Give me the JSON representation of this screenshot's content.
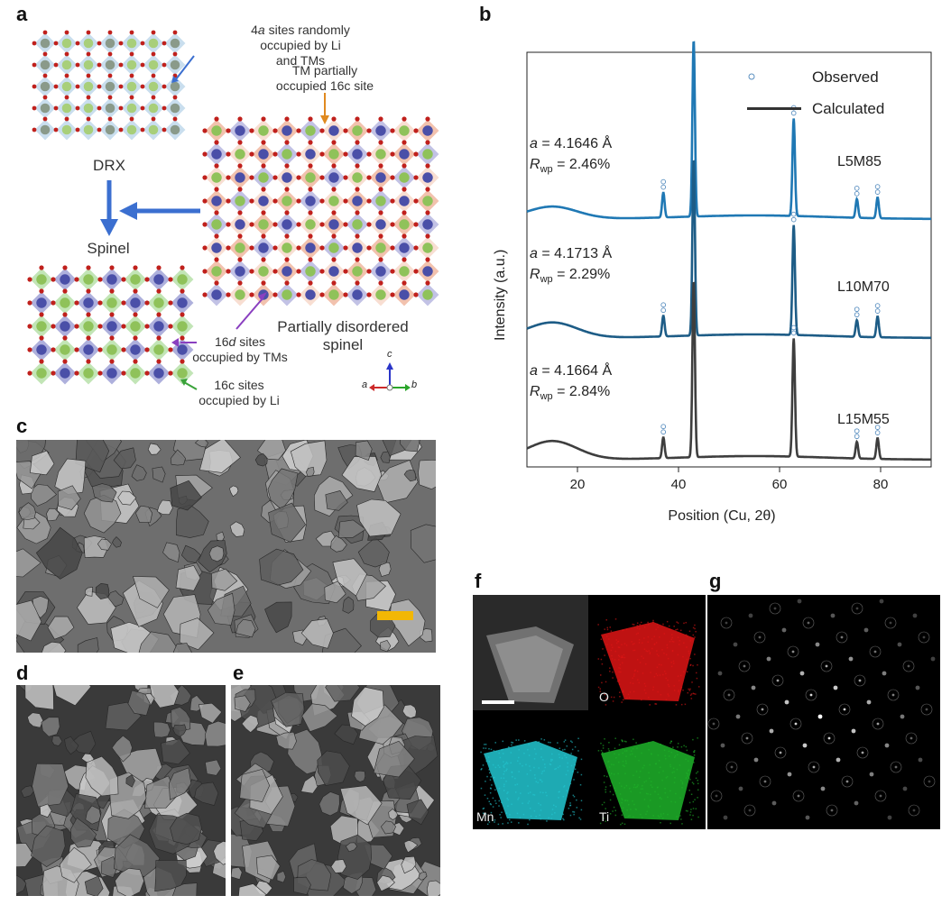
{
  "panel_labels": {
    "a": "a",
    "b": "b",
    "c": "c",
    "d": "d",
    "e": "e",
    "f": "f",
    "g": "g"
  },
  "panel_a": {
    "ann_4a_pre": "4",
    "ann_4a_it": "a",
    "ann_4a_line1_rest": " sites randomly",
    "ann_4a_line2": "occupied by Li",
    "ann_4a_line3": "and TMs",
    "ann_tm_line1": "TM partially",
    "ann_tm_line2": "occupied 16c site",
    "drx": "DRX",
    "spinel": "Spinel",
    "pds_line1": "Partially disordered",
    "pds_line2": "spinel",
    "ann_16d_pre": "16",
    "ann_16d_it": "d",
    "ann_16d_rest": " sites",
    "ann_16d_line2": "occupied by TMs",
    "ann_16c_line1": "16c sites",
    "ann_16c_line2": "occupied by Li",
    "axis_a": "a",
    "axis_b": "b",
    "axis_c": "c",
    "colors": {
      "oxygen": "#c0201c",
      "li": "#8fc25a",
      "tm": "#4a4fa8",
      "drx_poly": "#9cc3e0",
      "spinel_li": "#8fd07a",
      "spinel_tm": "#6b6fbf",
      "pds_orange": "#e7906c"
    }
  },
  "chart_data": {
    "type": "line",
    "xlabel": "Position (Cu, 2θ)",
    "ylabel": "Intensity (a.u.)",
    "xlim": [
      10,
      90
    ],
    "xticks": [
      20,
      40,
      60,
      80
    ],
    "xtick_labels": [
      "20",
      "40",
      "60",
      "80"
    ],
    "legend": {
      "placement": "top-right",
      "entries": [
        "Observed",
        "Calculated"
      ]
    },
    "series": [
      {
        "name": "L5M85",
        "a_label": "a = 4.1646 Å",
        "rwp_label": "R",
        "rwp_sub": "wp",
        "rwp_value": " = 2.46%",
        "color": "#1f78b4",
        "peaks": [
          {
            "x": 37.0,
            "h": 0.12
          },
          {
            "x": 43.0,
            "h": 0.85
          },
          {
            "x": 62.8,
            "h": 0.47
          },
          {
            "x": 75.3,
            "h": 0.09
          },
          {
            "x": 79.4,
            "h": 0.1
          }
        ],
        "hump": {
          "x": 15,
          "h": 0.12
        }
      },
      {
        "name": "L10M70",
        "a_label": "a = 4.1713 Å",
        "rwp_label": "R",
        "rwp_sub": "wp",
        "rwp_value": " = 2.29%",
        "color": "#1d5c86",
        "peaks": [
          {
            "x": 37.0,
            "h": 0.1
          },
          {
            "x": 43.0,
            "h": 0.85
          },
          {
            "x": 62.8,
            "h": 0.53
          },
          {
            "x": 75.3,
            "h": 0.08
          },
          {
            "x": 79.4,
            "h": 0.1
          }
        ],
        "hump": {
          "x": 15,
          "h": 0.15
        }
      },
      {
        "name": "L15M55",
        "a_label": "a = 4.1664 Å",
        "rwp_label": "R",
        "rwp_sub": "wp",
        "rwp_value": " = 2.84%",
        "color": "#3e3e3e",
        "peaks": [
          {
            "x": 37.0,
            "h": 0.1
          },
          {
            "x": 43.0,
            "h": 0.85
          },
          {
            "x": 62.8,
            "h": 0.57
          },
          {
            "x": 75.3,
            "h": 0.08
          },
          {
            "x": 79.4,
            "h": 0.1
          }
        ],
        "hump": {
          "x": 15,
          "h": 0.18
        }
      }
    ]
  },
  "panel_f": {
    "o": "O",
    "mn": "Mn",
    "ti": "Ti",
    "colors": {
      "o": "#e01515",
      "mn": "#23c8d2",
      "ti": "#1fb42a",
      "scale_bar": "#ffffff"
    }
  },
  "panel_c": {
    "scale_bar_color": "#f2b705"
  }
}
